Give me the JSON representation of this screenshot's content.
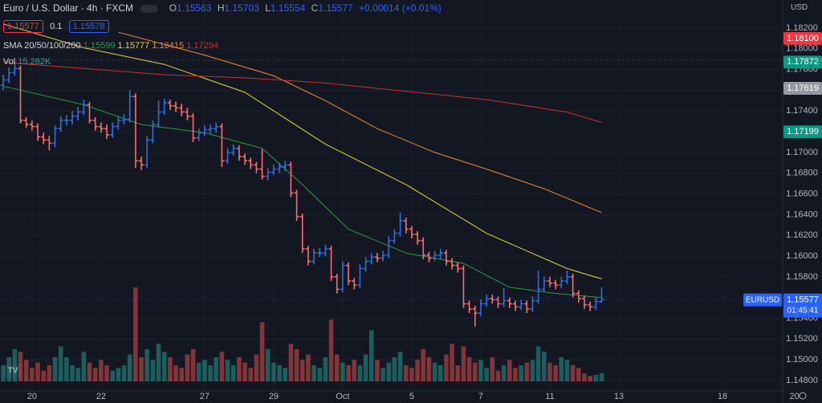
{
  "chart_data": {
    "type": "ohlc",
    "title": "Euro / U.S. Dollar · 4h · FXCM",
    "header": {
      "ohlc": [
        {
          "key": "O",
          "value": "1.15563"
        },
        {
          "key": "H",
          "value": "1.15703"
        },
        {
          "key": "L",
          "value": "1.15554"
        },
        {
          "key": "C",
          "value": "1.15577"
        }
      ],
      "change": "+0.00014 (+0.01%)",
      "sell": "1.15577",
      "spread": "0.1",
      "buy": "1.15578",
      "sma_label": "SMA 20/50/100/200",
      "vol_label": "Vol",
      "vol_value": "15.282K",
      "currency": "USD"
    },
    "up_color": "#2f6ee0",
    "down_color": "#f7706f",
    "volume_up_color": "#26a69a",
    "volume_down_color": "#ef5350",
    "open": [
      1.1765,
      1.177,
      1.1777,
      1.1781,
      1.1731,
      1.1727,
      1.1725,
      1.1715,
      1.1712,
      1.1709,
      1.1723,
      1.1731,
      1.1731,
      1.1735,
      1.1739,
      1.1746,
      1.1731,
      1.1725,
      1.1723,
      1.1717,
      1.1725,
      1.1731,
      1.1732,
      1.1754,
      1.1692,
      1.1688,
      1.1712,
      1.1727,
      1.1739,
      1.1748,
      1.1745,
      1.1743,
      1.1739,
      1.1735,
      1.1714,
      1.1719,
      1.1722,
      1.1723,
      1.1725,
      1.1692,
      1.17,
      1.1704,
      1.1696,
      1.1692,
      1.1688,
      1.1684,
      1.1677,
      1.1681,
      1.1684,
      1.1686,
      1.1688,
      1.1661,
      1.1638,
      1.1607,
      1.1595,
      1.1603,
      1.1603,
      1.1607,
      1.158,
      1.1568,
      1.1591,
      1.1576,
      1.1572,
      1.1588,
      1.1595,
      1.1599,
      1.1598,
      1.1601,
      1.1615,
      1.1622,
      1.1634,
      1.1626,
      1.1621,
      1.1615,
      1.1601,
      1.1598,
      1.1601,
      1.1603,
      1.1595,
      1.1591,
      1.1588,
      1.1554,
      1.1549,
      1.1545,
      1.1554,
      1.1559,
      1.1558,
      1.1554,
      1.1557,
      1.1554,
      1.1551,
      1.1554,
      1.1549,
      1.1557,
      1.1568,
      1.1576,
      1.1574,
      1.1572,
      1.1576,
      1.158,
      1.1564,
      1.1559,
      1.1553,
      1.1551,
      1.1556
    ],
    "high": [
      1.1775,
      1.1782,
      1.1787,
      1.1784,
      1.1734,
      1.1731,
      1.1728,
      1.1719,
      1.1716,
      1.1726,
      1.1735,
      1.1736,
      1.174,
      1.1744,
      1.1751,
      1.1749,
      1.1734,
      1.1729,
      1.1727,
      1.1729,
      1.1735,
      1.1737,
      1.176,
      1.1757,
      1.1696,
      1.1716,
      1.1731,
      1.175,
      1.1752,
      1.1751,
      1.1749,
      1.1747,
      1.1743,
      1.1738,
      1.1723,
      1.1726,
      1.1727,
      1.1729,
      1.1728,
      1.1704,
      1.1708,
      1.1707,
      1.1699,
      1.1695,
      1.1691,
      1.1703,
      1.1685,
      1.1688,
      1.169,
      1.1692,
      1.1691,
      1.1664,
      1.1641,
      1.161,
      1.1607,
      1.1608,
      1.1611,
      1.161,
      1.1583,
      1.1595,
      1.1594,
      1.1579,
      1.1592,
      1.1599,
      1.1603,
      1.1603,
      1.1605,
      1.1619,
      1.1626,
      1.1642,
      1.1637,
      1.1629,
      1.1624,
      1.1618,
      1.1604,
      1.1605,
      1.1607,
      1.1606,
      1.1598,
      1.1594,
      1.1591,
      1.1557,
      1.1552,
      1.1558,
      1.1563,
      1.1563,
      1.1561,
      1.1569,
      1.156,
      1.1557,
      1.1558,
      1.1557,
      1.1561,
      1.1586,
      1.158,
      1.158,
      1.1577,
      1.158,
      1.1586,
      1.1583,
      1.1567,
      1.1562,
      1.1556,
      1.156,
      1.157
    ],
    "low": [
      1.176,
      1.1767,
      1.1774,
      1.1728,
      1.1724,
      1.1721,
      1.1711,
      1.1708,
      1.1702,
      1.1705,
      1.172,
      1.1726,
      1.1727,
      1.1731,
      1.1736,
      1.1728,
      1.1721,
      1.1719,
      1.1713,
      1.1714,
      1.1722,
      1.1727,
      1.1729,
      1.1685,
      1.1683,
      1.1685,
      1.1709,
      1.1724,
      1.1736,
      1.1741,
      1.1739,
      1.1735,
      1.1731,
      1.171,
      1.1711,
      1.1716,
      1.1718,
      1.1719,
      1.1686,
      1.1689,
      1.1697,
      1.1692,
      1.1688,
      1.1684,
      1.168,
      1.1674,
      1.1673,
      1.1678,
      1.168,
      1.1682,
      1.1657,
      1.1634,
      1.1603,
      1.1591,
      1.1592,
      1.1599,
      1.16,
      1.1576,
      1.1564,
      1.1565,
      1.1572,
      1.1568,
      1.1569,
      1.1585,
      1.1592,
      1.1594,
      1.1595,
      1.1598,
      1.1612,
      1.1619,
      1.1622,
      1.1617,
      1.1611,
      1.1597,
      1.1594,
      1.1595,
      1.1597,
      1.1591,
      1.1587,
      1.1584,
      1.155,
      1.1545,
      1.1532,
      1.1542,
      1.1551,
      1.1554,
      1.155,
      1.1551,
      1.155,
      1.1547,
      1.1548,
      1.1545,
      1.1546,
      1.1554,
      1.1565,
      1.157,
      1.1568,
      1.1569,
      1.1573,
      1.156,
      1.1555,
      1.1549,
      1.1547,
      1.1548,
      1.1555
    ],
    "close": [
      1.177,
      1.1777,
      1.1781,
      1.1731,
      1.1727,
      1.1725,
      1.1715,
      1.1712,
      1.1709,
      1.1723,
      1.1731,
      1.1731,
      1.1735,
      1.1739,
      1.1746,
      1.1731,
      1.1725,
      1.1723,
      1.1717,
      1.1725,
      1.1731,
      1.1732,
      1.1754,
      1.1692,
      1.1688,
      1.1712,
      1.1727,
      1.1739,
      1.1748,
      1.1745,
      1.1743,
      1.1739,
      1.1735,
      1.1714,
      1.1719,
      1.1722,
      1.1723,
      1.1725,
      1.1692,
      1.17,
      1.1704,
      1.1696,
      1.1692,
      1.1688,
      1.1684,
      1.1677,
      1.1681,
      1.1684,
      1.1686,
      1.1688,
      1.1661,
      1.1638,
      1.1607,
      1.1595,
      1.1603,
      1.1603,
      1.1607,
      1.158,
      1.1568,
      1.1591,
      1.1576,
      1.1572,
      1.1588,
      1.1595,
      1.1599,
      1.1598,
      1.1601,
      1.1615,
      1.1622,
      1.1634,
      1.1626,
      1.1621,
      1.1615,
      1.1601,
      1.1598,
      1.1601,
      1.1603,
      1.1595,
      1.1591,
      1.1588,
      1.1554,
      1.1549,
      1.1545,
      1.1554,
      1.1559,
      1.1558,
      1.1554,
      1.1557,
      1.1554,
      1.1551,
      1.1554,
      1.1549,
      1.1557,
      1.1568,
      1.1576,
      1.1574,
      1.1572,
      1.1576,
      1.158,
      1.1564,
      1.1559,
      1.1553,
      1.1551,
      1.1556,
      1.1558
    ],
    "volume": [
      30,
      45,
      60,
      55,
      40,
      25,
      35,
      20,
      30,
      45,
      65,
      45,
      30,
      25,
      55,
      35,
      25,
      40,
      30,
      20,
      25,
      30,
      50,
      175,
      45,
      60,
      40,
      70,
      55,
      45,
      30,
      25,
      50,
      60,
      35,
      40,
      30,
      45,
      55,
      40,
      30,
      45,
      35,
      25,
      50,
      110,
      60,
      35,
      30,
      25,
      70,
      60,
      40,
      50,
      30,
      25,
      45,
      115,
      50,
      35,
      30,
      40,
      30,
      50,
      95,
      40,
      25,
      35,
      45,
      55,
      30,
      25,
      40,
      60,
      45,
      35,
      30,
      50,
      70,
      30,
      65,
      45,
      35,
      40,
      25,
      45,
      20,
      30,
      40,
      25,
      30,
      35,
      40,
      65,
      55,
      35,
      30,
      45,
      40,
      30,
      25,
      15,
      10,
      12,
      15.282
    ],
    "series": [
      {
        "color": "#2e9c3f",
        "legend_value": "1.15599",
        "x": [
          0,
          14,
          24,
          35,
          45,
          52,
          60,
          70,
          80,
          88,
          96,
          104
        ],
        "values": [
          1.1764,
          1.1746,
          1.1727,
          1.1719,
          1.1704,
          1.1669,
          1.1626,
          1.1603,
          1.1593,
          1.157,
          1.1564,
          1.156
        ]
      },
      {
        "color": "#e6d53a",
        "legend_value": "1.15777",
        "x": [
          0,
          14,
          28,
          42,
          56,
          70,
          84,
          98,
          104
        ],
        "values": [
          1.1824,
          1.1801,
          1.1785,
          1.1758,
          1.1708,
          1.1669,
          1.1622,
          1.1588,
          1.1578
        ]
      },
      {
        "color": "#f08c2e",
        "legend_value": "1.16415",
        "x": [
          20,
          35,
          47,
          56,
          65,
          75,
          84,
          94,
          104
        ],
        "values": [
          1.1816,
          1.1794,
          1.1774,
          1.175,
          1.1723,
          1.17,
          1.1684,
          1.1665,
          1.1642
        ]
      },
      {
        "color": "#c9302c",
        "legend_value": "1.17294",
        "x": [
          0,
          14,
          28,
          42,
          56,
          70,
          84,
          98,
          104
        ],
        "values": [
          1.1787,
          1.1781,
          1.1775,
          1.1772,
          1.1767,
          1.1759,
          1.1751,
          1.1739,
          1.1729
        ]
      }
    ],
    "xlim": [
      -0.56,
      142.3
    ],
    "xticks": [
      {
        "value": 5,
        "label": "20"
      },
      {
        "value": 17,
        "label": "22"
      },
      {
        "value": 35,
        "label": "27"
      },
      {
        "value": 47,
        "label": "29"
      },
      {
        "value": 59,
        "label": "Oct"
      },
      {
        "value": 71,
        "label": "5"
      },
      {
        "value": 83,
        "label": "7"
      },
      {
        "value": 95,
        "label": "11"
      },
      {
        "value": 107,
        "label": "13"
      },
      {
        "value": 125,
        "label": "18"
      },
      {
        "value": 137.5,
        "label": "20"
      }
    ],
    "ylim": [
      1.14699,
      1.18471
    ],
    "yticks": [
      {
        "value": 1.182,
        "label": "1.18200"
      },
      {
        "value": 1.18,
        "label": "1.18000"
      },
      {
        "value": 1.178,
        "label": "1.17800"
      },
      {
        "value": 1.176,
        "label": "1.17600"
      },
      {
        "value": 1.174,
        "label": "1.17400"
      },
      {
        "value": 1.172,
        "label": "1.17200"
      },
      {
        "value": 1.17,
        "label": "1.17000"
      },
      {
        "value": 1.168,
        "label": "1.16800"
      },
      {
        "value": 1.166,
        "label": "1.16600"
      },
      {
        "value": 1.164,
        "label": "1.16400"
      },
      {
        "value": 1.162,
        "label": "1.16200"
      },
      {
        "value": 1.16,
        "label": "1.16000"
      },
      {
        "value": 1.158,
        "label": "1.15800"
      },
      {
        "value": 1.156,
        "label": "1.15600"
      },
      {
        "value": 1.154,
        "label": "1.15400"
      },
      {
        "value": 1.152,
        "label": "1.15200"
      },
      {
        "value": 1.15,
        "label": "1.15000"
      },
      {
        "value": 1.148,
        "label": "1.14800"
      }
    ],
    "grid": true,
    "price_labels": [
      {
        "value": 1.181,
        "label": "1.18100",
        "color": "#f23645"
      },
      {
        "value": 1.17872,
        "label": "1.17872",
        "color": "#089981"
      },
      {
        "value": 1.17619,
        "label": "1.17619",
        "color": "#9598a1"
      },
      {
        "value": 1.17199,
        "label": "1.17199",
        "color": "#089981"
      }
    ],
    "last_price": {
      "value": 1.15577,
      "label": "1.15577",
      "name": "EURUSD",
      "countdown": "01:45:41",
      "color": "#2962ff"
    }
  }
}
